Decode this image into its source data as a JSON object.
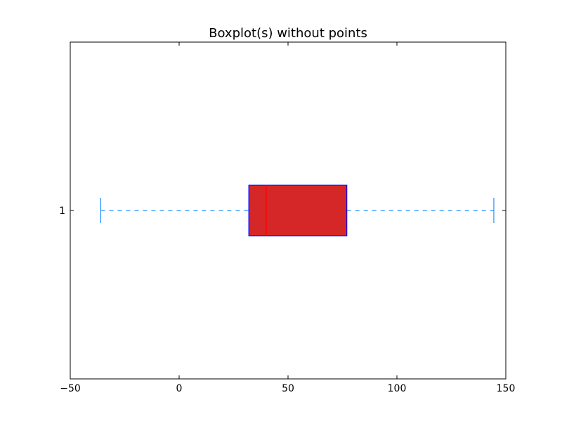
{
  "chart_data": {
    "type": "boxplot",
    "orientation": "horizontal",
    "title": "Boxplot(s) without points",
    "xlabel": "",
    "ylabel": "",
    "xlim": [
      -50,
      150
    ],
    "x_ticks": [
      -50,
      0,
      50,
      100,
      150
    ],
    "x_tick_labels": [
      "−50",
      "0",
      "50",
      "100",
      "150"
    ],
    "categories": [
      "1"
    ],
    "boxes": [
      {
        "category": "1",
        "whisker_low": -36,
        "q1": 32,
        "median": 40,
        "q3": 77,
        "whisker_high": 144.5
      }
    ],
    "grid": false,
    "legend": "none",
    "colors": {
      "box_fill": "#d62728",
      "box_edge": "#0000ff",
      "median": "#ff0000",
      "whisker": "#1e90ff"
    }
  }
}
